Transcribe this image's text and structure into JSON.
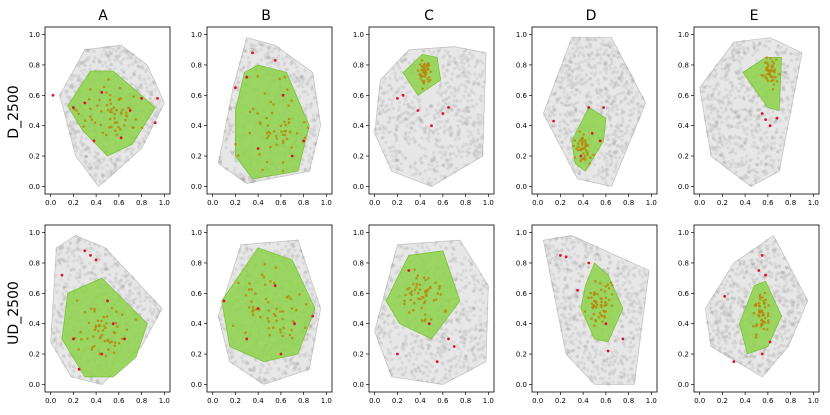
{
  "figure": {
    "column_titles": [
      "A",
      "B",
      "C",
      "D",
      "E"
    ],
    "row_labels": [
      "D_2500",
      "UD_2500"
    ]
  },
  "chart_data": {
    "type": "scatter",
    "xlim": [
      -0.05,
      1.05
    ],
    "ylim": [
      -0.05,
      1.05
    ],
    "xticks": [
      "0.0",
      "0.2",
      "0.4",
      "0.6",
      "0.8",
      "1.0"
    ],
    "yticks": [
      "0.0",
      "0.2",
      "0.4",
      "0.6",
      "0.8",
      "1.0"
    ],
    "grid": false,
    "colors": {
      "cloud_points": "#7f7f7f",
      "background_hull": "#d3d3d3",
      "highlight_hull": "#8ed24a",
      "highlight_points": "#b8860b",
      "outlier_points": "#e0102a"
    },
    "panels": [
      {
        "row": "D_2500",
        "column": "A",
        "background_hull": [
          [
            0.08,
            0.6
          ],
          [
            0.3,
            0.9
          ],
          [
            0.62,
            0.93
          ],
          [
            0.85,
            0.8
          ],
          [
            1.0,
            0.55
          ],
          [
            0.8,
            0.25
          ],
          [
            0.5,
            0.05
          ],
          [
            0.42,
            0.0
          ],
          [
            0.22,
            0.2
          ]
        ],
        "highlight_hull": [
          [
            0.15,
            0.53
          ],
          [
            0.35,
            0.76
          ],
          [
            0.55,
            0.76
          ],
          [
            0.92,
            0.52
          ],
          [
            0.72,
            0.28
          ],
          [
            0.5,
            0.2
          ],
          [
            0.28,
            0.37
          ]
        ],
        "highlight_points": {
          "center": [
            0.55,
            0.48
          ],
          "spread": [
            0.22,
            0.16
          ],
          "count": 60
        },
        "outliers": [
          [
            0.02,
            0.6
          ],
          [
            0.94,
            0.58
          ],
          [
            0.92,
            0.42
          ],
          [
            0.3,
            0.55
          ],
          [
            0.45,
            0.62
          ],
          [
            0.7,
            0.5
          ],
          [
            0.38,
            0.3
          ],
          [
            0.62,
            0.32
          ],
          [
            0.2,
            0.52
          ],
          [
            0.8,
            0.58
          ]
        ]
      },
      {
        "row": "D_2500",
        "column": "B",
        "background_hull": [
          [
            0.3,
            0.98
          ],
          [
            0.55,
            0.93
          ],
          [
            0.88,
            0.75
          ],
          [
            0.95,
            0.4
          ],
          [
            0.85,
            0.1
          ],
          [
            0.3,
            0.02
          ],
          [
            0.05,
            0.15
          ],
          [
            0.18,
            0.65
          ]
        ],
        "highlight_hull": [
          [
            0.28,
            0.75
          ],
          [
            0.4,
            0.8
          ],
          [
            0.65,
            0.75
          ],
          [
            0.85,
            0.4
          ],
          [
            0.75,
            0.1
          ],
          [
            0.35,
            0.05
          ],
          [
            0.2,
            0.2
          ],
          [
            0.2,
            0.5
          ]
        ],
        "highlight_points": {
          "center": [
            0.55,
            0.4
          ],
          "spread": [
            0.25,
            0.25
          ],
          "count": 55
        },
        "outliers": [
          [
            0.35,
            0.88
          ],
          [
            0.55,
            0.83
          ],
          [
            0.2,
            0.65
          ],
          [
            0.3,
            0.72
          ],
          [
            0.62,
            0.6
          ],
          [
            0.4,
            0.25
          ],
          [
            0.7,
            0.2
          ],
          [
            0.8,
            0.3
          ]
        ]
      },
      {
        "row": "D_2500",
        "column": "C",
        "background_hull": [
          [
            0.05,
            0.7
          ],
          [
            0.3,
            0.9
          ],
          [
            0.7,
            0.92
          ],
          [
            0.98,
            0.88
          ],
          [
            0.95,
            0.2
          ],
          [
            0.5,
            0.0
          ],
          [
            0.15,
            0.1
          ],
          [
            0.0,
            0.35
          ]
        ],
        "highlight_hull": [
          [
            0.25,
            0.75
          ],
          [
            0.42,
            0.87
          ],
          [
            0.55,
            0.85
          ],
          [
            0.58,
            0.7
          ],
          [
            0.38,
            0.6
          ]
        ],
        "highlight_points": {
          "center": [
            0.44,
            0.76
          ],
          "spread": [
            0.05,
            0.06
          ],
          "count": 45
        },
        "outliers": [
          [
            0.2,
            0.58
          ],
          [
            0.5,
            0.4
          ],
          [
            0.6,
            0.48
          ],
          [
            0.38,
            0.5
          ],
          [
            0.25,
            0.6
          ],
          [
            0.65,
            0.52
          ]
        ]
      },
      {
        "row": "D_2500",
        "column": "D",
        "background_hull": [
          [
            0.05,
            0.48
          ],
          [
            0.3,
            0.98
          ],
          [
            0.65,
            0.98
          ],
          [
            0.95,
            0.55
          ],
          [
            0.65,
            0.0
          ],
          [
            0.35,
            0.05
          ]
        ],
        "highlight_hull": [
          [
            0.3,
            0.3
          ],
          [
            0.45,
            0.52
          ],
          [
            0.6,
            0.45
          ],
          [
            0.58,
            0.3
          ],
          [
            0.42,
            0.1
          ],
          [
            0.33,
            0.15
          ]
        ],
        "highlight_points": {
          "center": [
            0.4,
            0.26
          ],
          "spread": [
            0.05,
            0.1
          ],
          "count": 45
        },
        "outliers": [
          [
            0.14,
            0.43
          ],
          [
            0.58,
            0.52
          ],
          [
            0.45,
            0.52
          ],
          [
            0.38,
            0.2
          ],
          [
            0.48,
            0.35
          ],
          [
            0.55,
            0.3
          ]
        ]
      },
      {
        "row": "D_2500",
        "column": "E",
        "background_hull": [
          [
            0.0,
            0.65
          ],
          [
            0.3,
            0.95
          ],
          [
            0.62,
            0.98
          ],
          [
            0.9,
            0.88
          ],
          [
            0.7,
            0.1
          ],
          [
            0.45,
            0.0
          ],
          [
            0.1,
            0.2
          ]
        ],
        "highlight_hull": [
          [
            0.38,
            0.75
          ],
          [
            0.58,
            0.85
          ],
          [
            0.72,
            0.85
          ],
          [
            0.7,
            0.5
          ],
          [
            0.6,
            0.52
          ]
        ],
        "highlight_points": {
          "center": [
            0.62,
            0.75
          ],
          "spread": [
            0.05,
            0.07
          ],
          "count": 45
        },
        "outliers": [
          [
            0.58,
            0.44
          ],
          [
            0.62,
            0.4
          ],
          [
            0.55,
            0.48
          ],
          [
            0.68,
            0.45
          ]
        ]
      },
      {
        "row": "UD_2500",
        "column": "A",
        "background_hull": [
          [
            0.05,
            0.9
          ],
          [
            0.22,
            0.98
          ],
          [
            0.48,
            0.9
          ],
          [
            0.98,
            0.5
          ],
          [
            0.8,
            0.25
          ],
          [
            0.45,
            0.0
          ],
          [
            0.18,
            0.05
          ],
          [
            0.0,
            0.28
          ]
        ],
        "highlight_hull": [
          [
            0.15,
            0.6
          ],
          [
            0.45,
            0.7
          ],
          [
            0.85,
            0.4
          ],
          [
            0.75,
            0.18
          ],
          [
            0.55,
            0.05
          ],
          [
            0.3,
            0.05
          ],
          [
            0.1,
            0.3
          ]
        ],
        "highlight_points": {
          "center": [
            0.45,
            0.35
          ],
          "spread": [
            0.2,
            0.15
          ],
          "count": 55
        },
        "outliers": [
          [
            0.1,
            0.72
          ],
          [
            0.3,
            0.88
          ],
          [
            0.35,
            0.85
          ],
          [
            0.4,
            0.82
          ],
          [
            0.2,
            0.3
          ],
          [
            0.55,
            0.4
          ],
          [
            0.65,
            0.3
          ],
          [
            0.25,
            0.1
          ],
          [
            0.45,
            0.2
          ],
          [
            0.5,
            0.55
          ]
        ]
      },
      {
        "row": "UD_2500",
        "column": "B",
        "background_hull": [
          [
            0.05,
            0.45
          ],
          [
            0.25,
            0.92
          ],
          [
            0.75,
            0.95
          ],
          [
            0.95,
            0.5
          ],
          [
            0.85,
            0.1
          ],
          [
            0.45,
            0.0
          ],
          [
            0.15,
            0.15
          ]
        ],
        "highlight_hull": [
          [
            0.08,
            0.55
          ],
          [
            0.4,
            0.9
          ],
          [
            0.7,
            0.82
          ],
          [
            0.9,
            0.5
          ],
          [
            0.75,
            0.2
          ],
          [
            0.45,
            0.15
          ],
          [
            0.15,
            0.25
          ]
        ],
        "highlight_points": {
          "center": [
            0.5,
            0.5
          ],
          "spread": [
            0.25,
            0.2
          ],
          "count": 55
        },
        "outliers": [
          [
            0.1,
            0.55
          ],
          [
            0.3,
            0.3
          ],
          [
            0.55,
            0.65
          ],
          [
            0.72,
            0.4
          ],
          [
            0.4,
            0.5
          ],
          [
            0.88,
            0.45
          ],
          [
            0.6,
            0.2
          ]
        ]
      },
      {
        "row": "UD_2500",
        "column": "C",
        "background_hull": [
          [
            0.2,
            0.92
          ],
          [
            0.75,
            0.95
          ],
          [
            1.0,
            0.65
          ],
          [
            0.98,
            0.15
          ],
          [
            0.6,
            0.0
          ],
          [
            0.15,
            0.05
          ],
          [
            0.0,
            0.35
          ]
        ],
        "highlight_hull": [
          [
            0.1,
            0.55
          ],
          [
            0.3,
            0.85
          ],
          [
            0.6,
            0.88
          ],
          [
            0.75,
            0.55
          ],
          [
            0.5,
            0.3
          ],
          [
            0.22,
            0.4
          ]
        ],
        "highlight_points": {
          "center": [
            0.42,
            0.6
          ],
          "spread": [
            0.15,
            0.13
          ],
          "count": 55
        },
        "outliers": [
          [
            0.2,
            0.2
          ],
          [
            0.55,
            0.15
          ],
          [
            0.7,
            0.25
          ],
          [
            0.65,
            0.3
          ],
          [
            0.48,
            0.4
          ],
          [
            0.3,
            0.75
          ]
        ]
      },
      {
        "row": "UD_2500",
        "column": "D",
        "background_hull": [
          [
            0.05,
            0.95
          ],
          [
            0.3,
            0.98
          ],
          [
            0.98,
            0.75
          ],
          [
            0.85,
            0.0
          ],
          [
            0.5,
            0.0
          ],
          [
            0.25,
            0.2
          ]
        ],
        "highlight_hull": [
          [
            0.42,
            0.65
          ],
          [
            0.5,
            0.8
          ],
          [
            0.62,
            0.72
          ],
          [
            0.75,
            0.5
          ],
          [
            0.62,
            0.28
          ],
          [
            0.5,
            0.3
          ],
          [
            0.38,
            0.5
          ]
        ],
        "highlight_points": {
          "center": [
            0.55,
            0.55
          ],
          "spread": [
            0.1,
            0.14
          ],
          "count": 55
        },
        "outliers": [
          [
            0.2,
            0.85
          ],
          [
            0.25,
            0.84
          ],
          [
            0.45,
            0.8
          ],
          [
            0.35,
            0.62
          ],
          [
            0.6,
            0.4
          ],
          [
            0.75,
            0.3
          ],
          [
            0.62,
            0.22
          ]
        ]
      },
      {
        "row": "UD_2500",
        "column": "E",
        "background_hull": [
          [
            0.05,
            0.5
          ],
          [
            0.3,
            0.8
          ],
          [
            0.65,
            0.98
          ],
          [
            0.95,
            0.55
          ],
          [
            0.78,
            0.25
          ],
          [
            0.55,
            0.05
          ],
          [
            0.1,
            0.25
          ]
        ],
        "highlight_hull": [
          [
            0.35,
            0.4
          ],
          [
            0.48,
            0.65
          ],
          [
            0.58,
            0.68
          ],
          [
            0.72,
            0.45
          ],
          [
            0.6,
            0.25
          ],
          [
            0.42,
            0.2
          ]
        ],
        "highlight_points": {
          "center": [
            0.55,
            0.45
          ],
          "spread": [
            0.08,
            0.12
          ],
          "count": 50
        },
        "outliers": [
          [
            0.55,
            0.85
          ],
          [
            0.52,
            0.75
          ],
          [
            0.58,
            0.72
          ],
          [
            0.22,
            0.58
          ],
          [
            0.3,
            0.15
          ],
          [
            0.55,
            0.2
          ],
          [
            0.62,
            0.28
          ]
        ]
      }
    ]
  }
}
